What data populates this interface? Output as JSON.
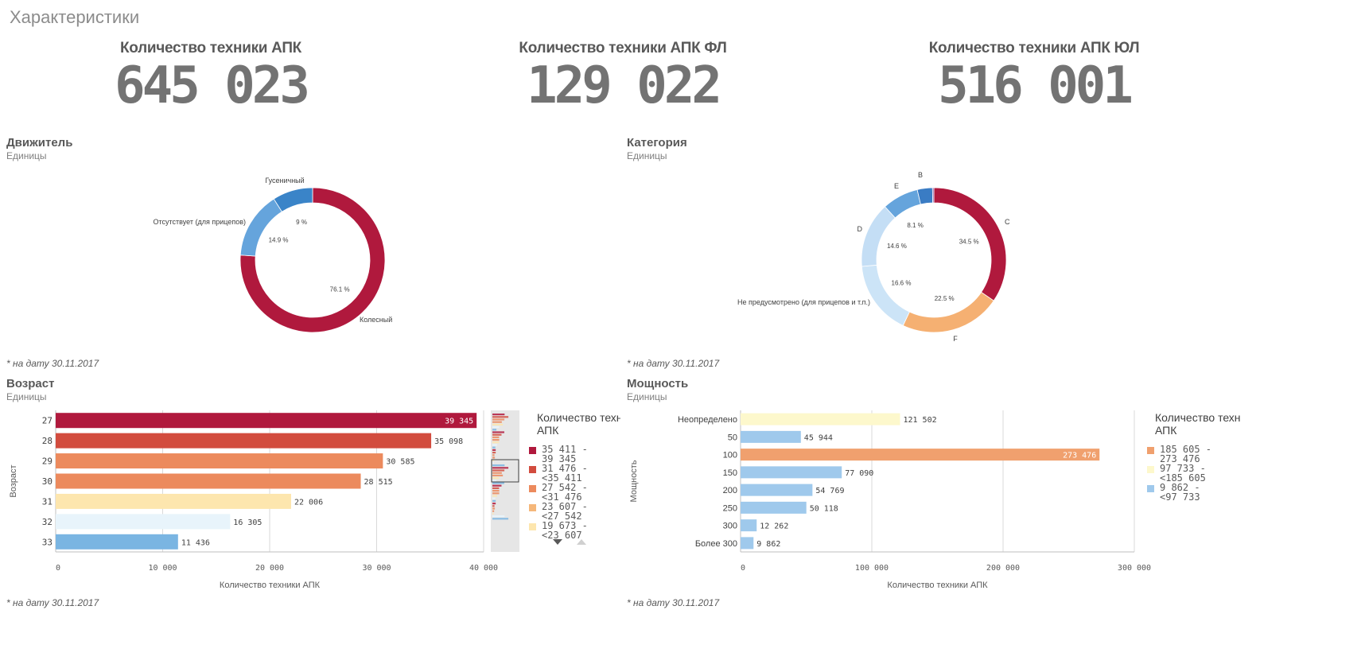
{
  "sheet_title": "Характеристики",
  "kpis": [
    {
      "label": "Количество техники АПК",
      "value": "645 023"
    },
    {
      "label": "Количество техники АПК ФЛ",
      "value": "129 022"
    },
    {
      "label": "Количество техники АПК ЮЛ",
      "value": "516 001"
    }
  ],
  "panels": {
    "drive": {
      "title": "Движитель",
      "subtitle": "Единицы",
      "footnote": "* на дату 30.11.2017"
    },
    "category": {
      "title": "Категория",
      "subtitle": "Единицы",
      "footnote": "* на дату 30.11.2017"
    },
    "age": {
      "title": "Возраст",
      "subtitle": "Единицы",
      "footnote": "* на дату 30.11.2017"
    },
    "power": {
      "title": "Мощность",
      "subtitle": "Единицы",
      "footnote": "* на дату 30.11.2017"
    }
  },
  "chart_data": [
    {
      "id": "drive",
      "type": "pie",
      "donut": true,
      "slices": [
        {
          "label": "Колесный",
          "value": 76.1,
          "pct_label": "76.1 %",
          "color": "#b0193d"
        },
        {
          "label": "Отсутствует (для прицепов)",
          "value": 14.9,
          "pct_label": "14.9 %",
          "color": "#65a4dc"
        },
        {
          "label": "Гусеничный",
          "value": 9.0,
          "pct_label": "9 %",
          "color": "#3a84c8"
        }
      ]
    },
    {
      "id": "category",
      "type": "pie",
      "donut": true,
      "slices": [
        {
          "label": "C",
          "value": 34.5,
          "pct_label": "34.5 %",
          "color": "#b0193d"
        },
        {
          "label": "F",
          "value": 22.5,
          "pct_label": "22.5 %",
          "color": "#f5b072"
        },
        {
          "label": "Не предусмотрено (для прицепов и т.п.)",
          "value": 16.6,
          "pct_label": "16.6 %",
          "color": "#cce4f7"
        },
        {
          "label": "D",
          "value": 14.6,
          "pct_label": "14.6 %",
          "color": "#c4def5"
        },
        {
          "label": "E",
          "value": 8.1,
          "pct_label": "8.1 %",
          "color": "#65a4dc"
        },
        {
          "label": "B",
          "value": 3.4,
          "pct_label": "",
          "color": "#3a7cc4"
        },
        {
          "label": "",
          "value": 0.3,
          "pct_label": "",
          "color": "#7b4ea0"
        }
      ]
    },
    {
      "id": "age",
      "type": "bar",
      "orientation": "horizontal",
      "categories": [
        "27",
        "28",
        "29",
        "30",
        "31",
        "32",
        "33"
      ],
      "values": [
        39345,
        35098,
        30585,
        28515,
        22006,
        16305,
        11436
      ],
      "value_labels": [
        "39 345",
        "35 098",
        "30 585",
        "28 515",
        "22 006",
        "16 305",
        "11 436"
      ],
      "colors": [
        "#b0193d",
        "#d24c3e",
        "#ec8a5d",
        "#ec8a5d",
        "#fde6ae",
        "#e8f4fb",
        "#7ab5e2"
      ],
      "xlabel": "Количество техники АПК",
      "ylabel": "Возраст",
      "xlim": [
        0,
        40000
      ],
      "xticks": [
        0,
        10000,
        20000,
        30000,
        40000
      ],
      "xtick_labels": [
        "0",
        "10 000",
        "20 000",
        "30 000",
        "40 000"
      ],
      "grid": true,
      "legend": {
        "title": "Количество техники АПК",
        "items": [
          {
            "label": "35 411 - 39 345",
            "color": "#b0193d"
          },
          {
            "label": "31 476 - <35 411",
            "color": "#d24c3e"
          },
          {
            "label": "27 542 - <31 476",
            "color": "#ec8a5d"
          },
          {
            "label": "23 607 - <27 542",
            "color": "#f5b77a"
          },
          {
            "label": "19 673 - <23 607",
            "color": "#fde6ae"
          }
        ]
      }
    },
    {
      "id": "power",
      "type": "bar",
      "orientation": "horizontal",
      "categories": [
        "Неопределено",
        "50",
        "100",
        "150",
        "200",
        "250",
        "300",
        "Более 300"
      ],
      "values": [
        121502,
        45944,
        273476,
        77090,
        54769,
        50118,
        12262,
        9862
      ],
      "value_labels": [
        "121 502",
        "45 944",
        "273 476",
        "77 090",
        "54 769",
        "50 118",
        "12 262",
        "9 862"
      ],
      "colors": [
        "#fdf8cc",
        "#9fc9ec",
        "#f0a06e",
        "#9fc9ec",
        "#9fc9ec",
        "#9fc9ec",
        "#9fc9ec",
        "#9fc9ec"
      ],
      "xlabel": "Количество техники АПК",
      "ylabel": "Мощность",
      "xlim": [
        0,
        300000
      ],
      "xticks": [
        0,
        100000,
        200000,
        300000
      ],
      "xtick_labels": [
        "0",
        "100 000",
        "200 000",
        "300 000"
      ],
      "grid": true,
      "legend": {
        "title": "Количество техники АПК",
        "items": [
          {
            "label": "185 605 - 273 476",
            "color": "#f0a06e"
          },
          {
            "label": "97 733 - <185 605",
            "color": "#fdf8cc"
          },
          {
            "label": "9 862 - <97 733",
            "color": "#9fc9ec"
          }
        ]
      }
    }
  ]
}
